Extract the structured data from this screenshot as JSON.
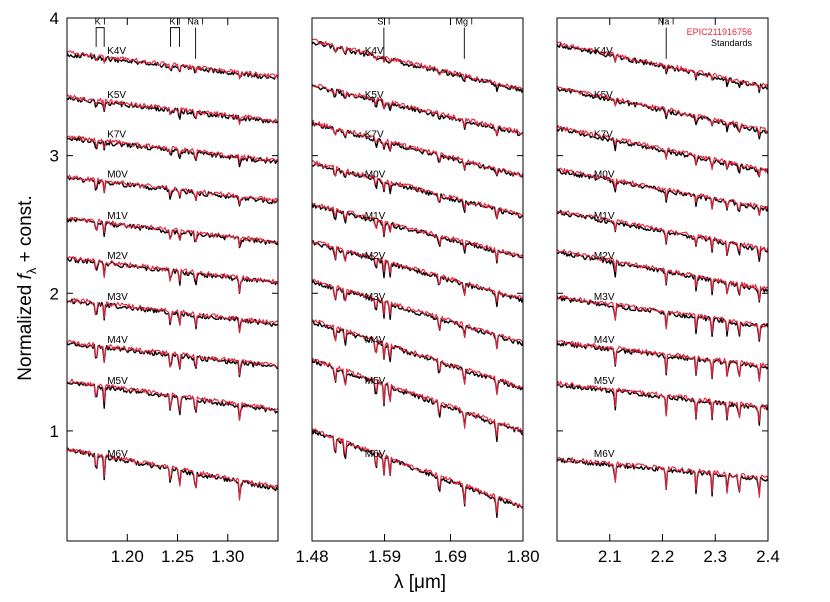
{
  "chart_data": {
    "type": "line",
    "ylabel": "Normalized f_λ + const.",
    "ylabel_parts": [
      "Normalized ",
      "f",
      "λ",
      " + const."
    ],
    "xlabel": "λ [μm]",
    "xlabel_parts": [
      "λ",
      " [μm]"
    ],
    "ylim": [
      0.2,
      4.0
    ],
    "y_ticks": [
      "1",
      "2",
      "3",
      "4"
    ],
    "legend": {
      "position": "top-right",
      "entries": [
        {
          "label": "EPIC211916756",
          "color": "#e8243c"
        },
        {
          "label": "Standards",
          "color": "#000000"
        }
      ]
    },
    "series_colors": {
      "standards": "#000000",
      "target": "#e8243c"
    },
    "spectral_types": [
      "K4V",
      "K5V",
      "K7V",
      "M0V",
      "M1V",
      "M2V",
      "M3V",
      "M4V",
      "M5V",
      "M6V"
    ],
    "offsets": [
      3.65,
      3.33,
      3.04,
      2.75,
      2.45,
      2.16,
      1.86,
      1.55,
      1.25,
      0.72
    ],
    "panels": [
      {
        "name": "J band",
        "xlim": [
          1.14,
          1.35
        ],
        "x_ticks": [
          "1.20",
          "1.25",
          "1.30"
        ],
        "slopes": [
          -0.5,
          -0.5,
          -0.5,
          -0.5,
          -0.5,
          -0.5,
          -0.5,
          -0.5,
          -0.6,
          -0.8
        ],
        "label_x": 1.18,
        "absorption": [
          1.169,
          1.177,
          1.243,
          1.252,
          1.268,
          1.312
        ],
        "annotations": [
          {
            "label": "K I",
            "x": [
              1.169,
              1.177
            ],
            "style": "bracket"
          },
          {
            "label": "K I",
            "x": [
              1.243,
              1.252
            ],
            "style": "bracket"
          },
          {
            "label": "Na I",
            "x": [
              1.268
            ],
            "style": "tick"
          }
        ]
      },
      {
        "name": "H band",
        "xlim": [
          1.48,
          1.8
        ],
        "x_ticks": [
          "1.48",
          "1.59",
          "1.69",
          "1.80"
        ],
        "slopes": [
          -1.0,
          -1.0,
          -1.1,
          -1.1,
          -1.1,
          -1.2,
          -1.3,
          -1.4,
          -1.5,
          -1.6
        ],
        "label_x": 1.56,
        "absorption": [
          1.515,
          1.53,
          1.577,
          1.589,
          1.598,
          1.673,
          1.711,
          1.76
        ],
        "annotations": [
          {
            "label": "Si I",
            "x": [
              1.589
            ],
            "style": "tick"
          },
          {
            "label": "Mg I",
            "x": [
              1.711
            ],
            "style": "tick"
          }
        ]
      },
      {
        "name": "K band",
        "xlim": [
          2.0,
          2.4
        ],
        "x_ticks": [
          "2.1",
          "2.2",
          "2.3",
          "2.4"
        ],
        "slopes": [
          -0.9,
          -0.9,
          -0.9,
          -0.8,
          -0.8,
          -0.8,
          -0.6,
          -0.5,
          -0.5,
          -0.4
        ],
        "label_x": 2.07,
        "absorption": [
          2.11,
          2.207,
          2.264,
          2.294,
          2.323,
          2.345,
          2.383
        ],
        "annotations": [
          {
            "label": "Na I",
            "x": [
              2.207
            ],
            "style": "tick"
          }
        ]
      }
    ]
  }
}
